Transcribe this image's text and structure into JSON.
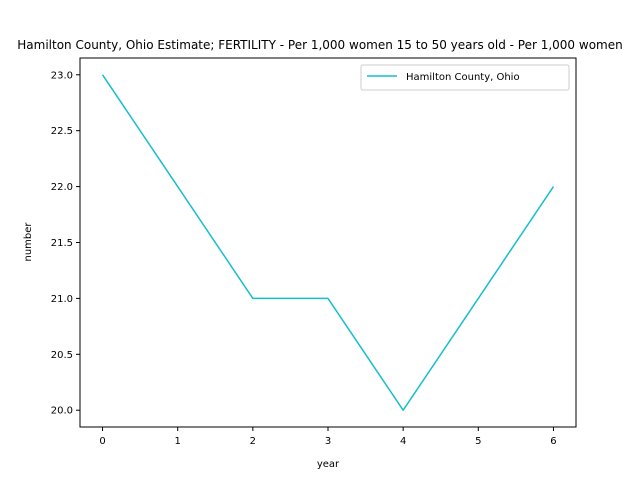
{
  "chart_data": {
    "type": "line",
    "title": "Hamilton County, Ohio Estimate; FERTILITY - Per 1,000 women 15 to 50 years old - Per 1,000 women",
    "xlabel": "year",
    "ylabel": "number",
    "x": [
      0,
      1,
      2,
      3,
      4,
      5,
      6
    ],
    "xticks": [
      "0",
      "1",
      "2",
      "3",
      "4",
      "5",
      "6"
    ],
    "yticks": [
      "20.0",
      "20.5",
      "21.0",
      "21.5",
      "22.0",
      "22.5",
      "23.0"
    ],
    "xlim": [
      -0.3,
      6.3
    ],
    "ylim": [
      19.85,
      23.15
    ],
    "grid": false,
    "legend_position": "top-right",
    "series": [
      {
        "name": "Hamilton County, Ohio",
        "color": "#17becf",
        "values": [
          23,
          22,
          21,
          21,
          20,
          21,
          22
        ]
      }
    ]
  }
}
